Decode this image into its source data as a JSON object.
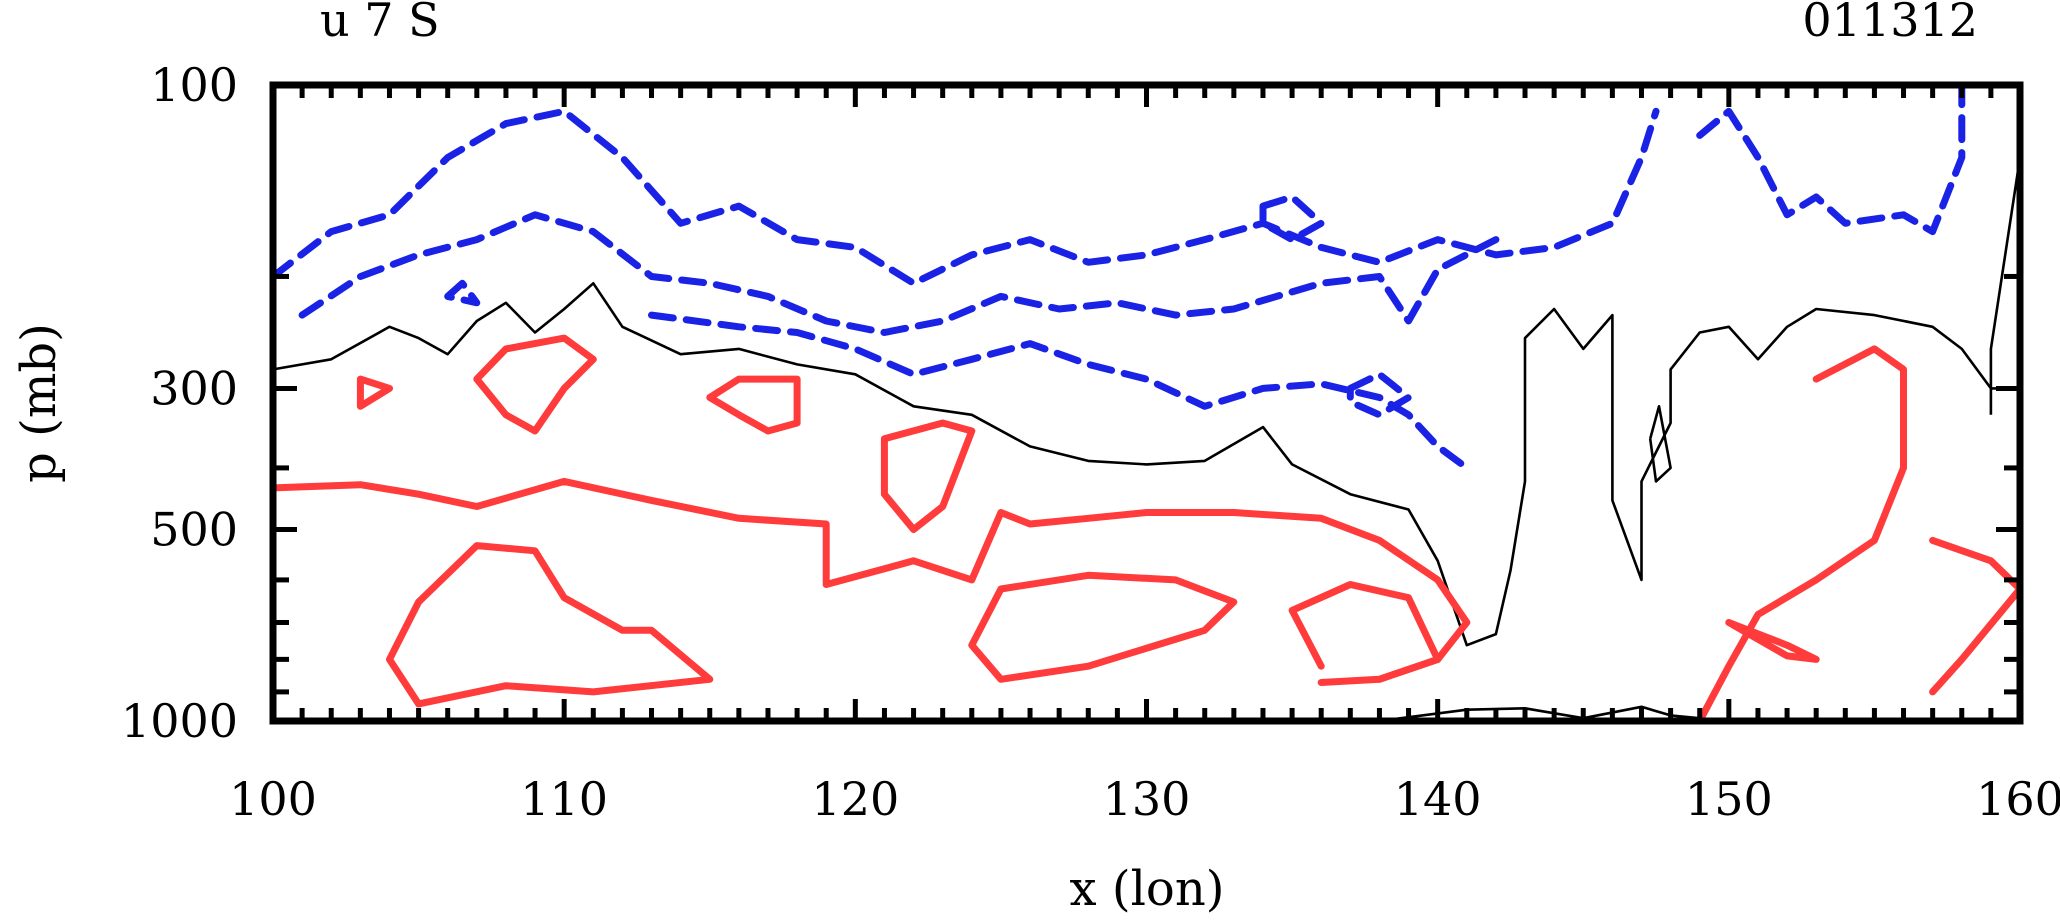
{
  "chart_data": {
    "type": "contour",
    "title_left": "u 7 S",
    "title_right": "011312",
    "xlabel": "x (lon)",
    "ylabel": "p (mb)",
    "xlim": [
      100,
      160
    ],
    "x_ticks": [
      100,
      110,
      120,
      130,
      140,
      150,
      160
    ],
    "x_tick_labels": [
      "100",
      "110",
      "120",
      "130",
      "140",
      "150",
      "160"
    ],
    "y_scale": "log",
    "ylim": [
      1000,
      100
    ],
    "y_ticks": [
      100,
      300,
      500,
      1000
    ],
    "y_tick_labels": [
      "100",
      "300",
      "500",
      "1000"
    ],
    "y_minor_ticks": [
      200,
      400,
      600,
      700,
      800,
      900
    ],
    "grid": false,
    "colors": {
      "positive": "#ff3b3b",
      "negative": "#1a22e6",
      "zero": "#000000"
    },
    "series": [
      {
        "sign": "zero",
        "style": "thin-solid",
        "contours": [
          [
            [
              100,
              280
            ],
            [
              102,
              270
            ],
            [
              104,
              240
            ],
            [
              105,
              250
            ],
            [
              106,
              265
            ],
            [
              107,
              235
            ],
            [
              108,
              220
            ],
            [
              109,
              245
            ],
            [
              110,
              225
            ],
            [
              111,
              205
            ],
            [
              112,
              240
            ],
            [
              114,
              265
            ],
            [
              116,
              260
            ],
            [
              118,
              275
            ],
            [
              120,
              285
            ],
            [
              122,
              320
            ],
            [
              124,
              330
            ],
            [
              126,
              370
            ],
            [
              128,
              390
            ],
            [
              130,
              395
            ],
            [
              132,
              390
            ],
            [
              134,
              345
            ],
            [
              135,
              395
            ],
            [
              137,
              440
            ],
            [
              139,
              465
            ],
            [
              140,
              560
            ],
            [
              141,
              760
            ],
            [
              142,
              730
            ],
            [
              142.5,
              580
            ],
            [
              143,
              420
            ],
            [
              143,
              250
            ],
            [
              144,
              225
            ],
            [
              145,
              260
            ],
            [
              146,
              230
            ],
            [
              146,
              450
            ],
            [
              147,
              600
            ],
            [
              147,
              420
            ],
            [
              148,
              340
            ],
            [
              148,
              280
            ],
            [
              149,
              245
            ],
            [
              150,
              240
            ],
            [
              151,
              270
            ],
            [
              152,
              240
            ],
            [
              153,
              225
            ],
            [
              155,
              230
            ],
            [
              157,
              240
            ],
            [
              158,
              260
            ],
            [
              159,
              300
            ],
            [
              160,
              300
            ]
          ],
          [
            [
              159,
              330
            ],
            [
              159,
              260
            ],
            [
              160,
              130
            ]
          ],
          [
            [
              138,
              1000
            ],
            [
              141,
              960
            ],
            [
              143,
              955
            ],
            [
              145,
              990
            ],
            [
              147,
              950
            ],
            [
              148,
              980
            ],
            [
              150,
              1000
            ]
          ],
          [
            [
              147.3,
              360
            ],
            [
              147.6,
              320
            ],
            [
              148,
              400
            ],
            [
              147.5,
              420
            ],
            [
              147.3,
              360
            ]
          ]
        ]
      },
      {
        "sign": "positive",
        "style": "thick-solid",
        "contours": [
          [
            [
              100,
              430
            ],
            [
              103,
              425
            ],
            [
              105,
              440
            ],
            [
              107,
              460
            ],
            [
              110,
              420
            ],
            [
              113,
              450
            ],
            [
              116,
              480
            ],
            [
              119,
              490
            ],
            [
              119,
              610
            ],
            [
              122,
              560
            ],
            [
              124,
              600
            ],
            [
              125,
              470
            ],
            [
              126,
              490
            ],
            [
              128,
              480
            ],
            [
              130,
              470
            ],
            [
              133,
              470
            ],
            [
              136,
              480
            ],
            [
              138,
              520
            ],
            [
              140,
              600
            ],
            [
              141,
              700
            ],
            [
              140,
              800
            ],
            [
              138,
              860
            ],
            [
              136,
              870
            ]
          ],
          [
            [
              125,
              620
            ],
            [
              128,
              590
            ],
            [
              131,
              600
            ],
            [
              133,
              650
            ],
            [
              132,
              720
            ],
            [
              128,
              820
            ],
            [
              125,
              860
            ],
            [
              124,
              760
            ],
            [
              125,
              620
            ]
          ],
          [
            [
              105,
              650
            ],
            [
              107,
              530
            ],
            [
              109,
              540
            ],
            [
              110,
              640
            ],
            [
              112,
              720
            ],
            [
              113,
              720
            ],
            [
              115,
              860
            ],
            [
              111,
              900
            ],
            [
              108,
              880
            ],
            [
              105,
              940
            ],
            [
              104,
              800
            ],
            [
              105,
              650
            ]
          ],
          [
            [
              136,
              820
            ],
            [
              135,
              670
            ],
            [
              137,
              610
            ],
            [
              139,
              640
            ],
            [
              140,
              800
            ],
            [
              138,
              860
            ]
          ],
          [
            [
              110,
              250
            ],
            [
              111,
              270
            ],
            [
              110,
              300
            ],
            [
              109,
              350
            ],
            [
              108,
              330
            ],
            [
              107,
              290
            ],
            [
              108,
              260
            ],
            [
              110,
              250
            ]
          ],
          [
            [
              116,
              290
            ],
            [
              118,
              290
            ],
            [
              118,
              340
            ],
            [
              117,
              350
            ],
            [
              116,
              330
            ],
            [
              115,
              310
            ],
            [
              116,
              290
            ]
          ],
          [
            [
              121,
              360
            ],
            [
              123,
              340
            ],
            [
              124,
              350
            ],
            [
              123,
              460
            ],
            [
              122,
              500
            ],
            [
              121,
              440
            ],
            [
              121,
              360
            ]
          ],
          [
            [
              153,
              290
            ],
            [
              155,
              260
            ],
            [
              156,
              280
            ],
            [
              156,
              400
            ],
            [
              155,
              520
            ],
            [
              153,
              600
            ],
            [
              151,
              680
            ],
            [
              150,
              820
            ],
            [
              149,
              1000
            ]
          ],
          [
            [
              157,
              520
            ],
            [
              159,
              560
            ],
            [
              160,
              620
            ],
            [
              158,
              800
            ],
            [
              157,
              900
            ]
          ],
          [
            [
              103,
              290
            ],
            [
              104,
              300
            ],
            [
              103,
              320
            ],
            [
              103,
              290
            ]
          ],
          [
            [
              150,
              700
            ],
            [
              152,
              760
            ],
            [
              153,
              800
            ],
            [
              152,
              790
            ],
            [
              150,
              700
            ]
          ]
        ]
      },
      {
        "sign": "negative",
        "style": "thick-dashed",
        "contours": [
          [
            [
              100,
              200
            ],
            [
              102,
              170
            ],
            [
              104,
              160
            ],
            [
              106,
              130
            ],
            [
              108,
              115
            ],
            [
              110,
              110
            ],
            [
              112,
              130
            ],
            [
              114,
              165
            ],
            [
              116,
              155
            ],
            [
              118,
              175
            ],
            [
              120,
              180
            ],
            [
              122,
              205
            ],
            [
              124,
              185
            ],
            [
              126,
              175
            ],
            [
              128,
              190
            ],
            [
              130,
              185
            ],
            [
              132,
              175
            ],
            [
              134,
              165
            ],
            [
              136,
              180
            ],
            [
              138,
              190
            ],
            [
              140,
              175
            ],
            [
              142,
              185
            ],
            [
              144,
              180
            ],
            [
              146,
              165
            ],
            [
              147,
              130
            ],
            [
              147.5,
              110
            ]
          ],
          [
            [
              101,
              230
            ],
            [
              103,
              200
            ],
            [
              105,
              185
            ],
            [
              107,
              175
            ],
            [
              109,
              160
            ],
            [
              111,
              170
            ],
            [
              113,
              200
            ],
            [
              115,
              205
            ],
            [
              117,
              215
            ],
            [
              119,
              235
            ],
            [
              121,
              245
            ],
            [
              123,
              235
            ],
            [
              125,
              215
            ],
            [
              127,
              225
            ],
            [
              129,
              220
            ],
            [
              131,
              230
            ],
            [
              133,
              225
            ],
            [
              136,
              205
            ],
            [
              138,
              200
            ],
            [
              139,
              235
            ],
            [
              140,
              195
            ],
            [
              142,
              175
            ]
          ],
          [
            [
              113,
              230
            ],
            [
              116,
              240
            ],
            [
              118,
              245
            ],
            [
              120,
              260
            ],
            [
              122,
              285
            ],
            [
              124,
              270
            ],
            [
              126,
              255
            ],
            [
              128,
              275
            ],
            [
              130,
              290
            ],
            [
              132,
              320
            ],
            [
              134,
              300
            ],
            [
              136,
              295
            ],
            [
              138,
              310
            ],
            [
              139,
              330
            ],
            [
              140,
              370
            ],
            [
              141,
              400
            ]
          ],
          [
            [
              137,
              300
            ],
            [
              138,
              285
            ],
            [
              139,
              310
            ],
            [
              138,
              330
            ],
            [
              137,
              315
            ],
            [
              137,
              300
            ]
          ],
          [
            [
              134,
              155
            ],
            [
              135,
              150
            ],
            [
              136,
              165
            ],
            [
              135,
              175
            ],
            [
              134,
              165
            ],
            [
              134,
              155
            ]
          ],
          [
            [
              149,
              120
            ],
            [
              150,
              110
            ],
            [
              151,
              130
            ],
            [
              152,
              160
            ],
            [
              153,
              150
            ],
            [
              154,
              165
            ],
            [
              156,
              160
            ],
            [
              157,
              170
            ],
            [
              158,
              130
            ],
            [
              158,
              100
            ]
          ],
          [
            [
              106,
              215
            ],
            [
              106.5,
              205
            ],
            [
              107,
              220
            ],
            [
              106,
              215
            ]
          ]
        ]
      }
    ]
  }
}
